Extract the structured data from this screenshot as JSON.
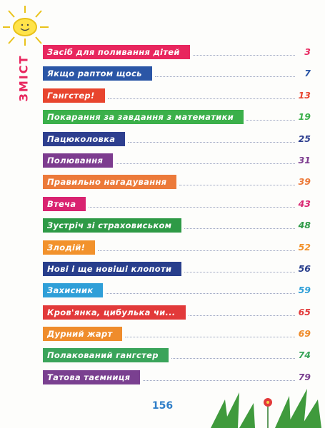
{
  "heading": "ЗМІСТ",
  "entries": [
    {
      "title": "Засіб для поливання дітей",
      "page": "3",
      "color": "#e8265e"
    },
    {
      "title": "Якщо раптом щось",
      "page": "7",
      "color": "#2b56a6"
    },
    {
      "title": "Гангстер!",
      "page": "13",
      "color": "#e8452e"
    },
    {
      "title": "Покарання за завдання з математики",
      "page": "19",
      "color": "#3bb04a"
    },
    {
      "title": "Пацюколовка",
      "page": "25",
      "color": "#2e3f8f"
    },
    {
      "title": "Полювання",
      "page": "31",
      "color": "#7d3c8f"
    },
    {
      "title": "Правильно нагадування",
      "page": "39",
      "color": "#ec7a3a"
    },
    {
      "title": "Втеча",
      "page": "43",
      "color": "#d92370"
    },
    {
      "title": "Зустріч зі страховиськом",
      "page": "48",
      "color": "#2e9a46"
    },
    {
      "title": "Злодій!",
      "page": "52",
      "color": "#f2922c"
    },
    {
      "title": "Нові і ще новіші клопоти",
      "page": "56",
      "color": "#283e8c"
    },
    {
      "title": "Захисник",
      "page": "59",
      "color": "#2f9fd8"
    },
    {
      "title": "Кров'янка, цибулька чи...",
      "page": "65",
      "color": "#e23a3a"
    },
    {
      "title": "Дурний жарт",
      "page": "69",
      "color": "#ef8c2c"
    },
    {
      "title": "Полакований гангстер",
      "page": "74",
      "color": "#3aa45a"
    },
    {
      "title": "Татова таємниця",
      "page": "79",
      "color": "#7a4090"
    }
  ],
  "page_number": "156"
}
